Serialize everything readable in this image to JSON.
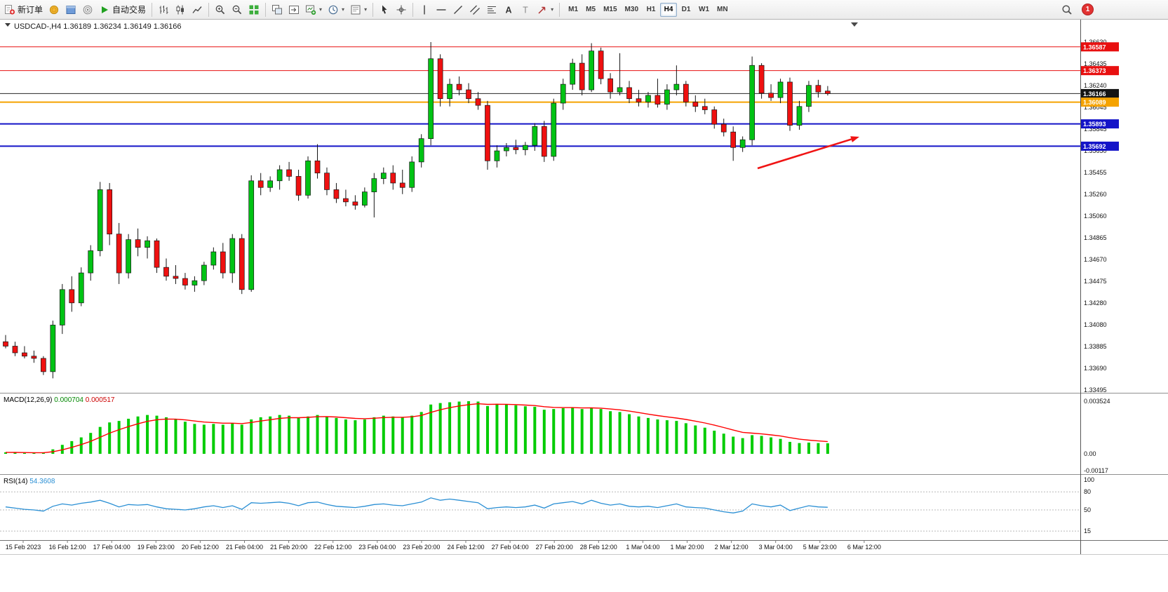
{
  "toolbar": {
    "items": [
      {
        "kind": "labeled",
        "name": "new-order-button",
        "icon": "new-order-icon",
        "label": "新订单"
      },
      {
        "kind": "icon",
        "name": "market-watch-button",
        "icon": "market-watch-icon"
      },
      {
        "kind": "icon",
        "name": "navigator-button",
        "icon": "navigator-icon"
      },
      {
        "kind": "icon",
        "name": "terminal-button",
        "icon": "terminal-icon"
      },
      {
        "kind": "labeled",
        "name": "autotrading-button",
        "icon": "autotrading-icon",
        "label": "自动交易"
      },
      {
        "kind": "sep"
      },
      {
        "kind": "icon",
        "name": "bar-chart-button",
        "icon": "bar-chart-icon"
      },
      {
        "kind": "icon",
        "name": "candlestick-chart-button",
        "icon": "candlestick-icon"
      },
      {
        "kind": "icon",
        "name": "line-chart-button",
        "icon": "line-chart-icon"
      },
      {
        "kind": "sep"
      },
      {
        "kind": "icon",
        "name": "zoom-in-button",
        "icon": "zoom-in-icon"
      },
      {
        "kind": "icon",
        "name": "zoom-out-button",
        "icon": "zoom-out-icon"
      },
      {
        "kind": "icon",
        "name": "tile-windows-button",
        "icon": "tile-windows-icon"
      },
      {
        "kind": "sep"
      },
      {
        "kind": "icon",
        "name": "auto-arrange-button",
        "icon": "auto-arrange-icon"
      },
      {
        "kind": "icon",
        "name": "chart-shift-button",
        "icon": "chart-shift-icon"
      },
      {
        "kind": "icon-dd",
        "name": "new-chart-button",
        "icon": "new-chart-icon"
      },
      {
        "kind": "icon-dd",
        "name": "periods-button",
        "icon": "clock-icon"
      },
      {
        "kind": "icon-dd",
        "name": "templates-button",
        "icon": "template-icon"
      },
      {
        "kind": "sep"
      },
      {
        "kind": "icon",
        "name": "cursor-button",
        "icon": "cursor-icon"
      },
      {
        "kind": "icon",
        "name": "crosshair-button",
        "icon": "crosshair-icon"
      },
      {
        "kind": "sep"
      },
      {
        "kind": "icon",
        "name": "vertical-line-button",
        "icon": "vertical-line-icon"
      },
      {
        "kind": "icon",
        "name": "horizontal-line-button",
        "icon": "horizontal-line-icon"
      },
      {
        "kind": "icon",
        "name": "trendline-button",
        "icon": "trendline-icon"
      },
      {
        "kind": "icon",
        "name": "channel-button",
        "icon": "channel-icon"
      },
      {
        "kind": "icon",
        "name": "fibonacci-button",
        "icon": "fibonacci-icon"
      },
      {
        "kind": "icon",
        "name": "text-button",
        "icon": "text-icon"
      },
      {
        "kind": "icon",
        "name": "label-button",
        "icon": "label-icon"
      },
      {
        "kind": "icon-dd",
        "name": "arrows-button",
        "icon": "arrow-shape-icon"
      },
      {
        "kind": "sep"
      },
      {
        "kind": "tf-group"
      }
    ],
    "timeframes": [
      "M1",
      "M5",
      "M15",
      "M30",
      "H1",
      "H4",
      "D1",
      "W1",
      "MN"
    ],
    "active_timeframe": "H4",
    "notification_count": "1"
  },
  "chart_header": {
    "title_line": "USDCAD-,H4  1.36189 1.36234 1.36149 1.36166"
  },
  "price_axis": {
    "labels": [
      "1.36630",
      "1.36435",
      "1.36240",
      "1.36045",
      "1.35845",
      "1.35650",
      "1.35455",
      "1.35260",
      "1.35060",
      "1.34865",
      "1.34670",
      "1.34475",
      "1.34280",
      "1.34080",
      "1.33885",
      "1.33690",
      "1.33495"
    ],
    "badges": [
      {
        "text": "1.36587",
        "price": 1.36587,
        "color": "#e81010"
      },
      {
        "text": "1.36373",
        "price": 1.36373,
        "color": "#e81010"
      },
      {
        "text": "1.36166",
        "price": 1.36166,
        "color": "#141414"
      },
      {
        "text": "1.36089",
        "price": 1.36089,
        "color": "#f5a300"
      },
      {
        "text": "1.35893",
        "price": 1.35893,
        "color": "#1414c8"
      },
      {
        "text": "1.35692",
        "price": 1.35692,
        "color": "#1414c8"
      }
    ]
  },
  "time_axis": {
    "labels": [
      "15 Feb 2023",
      "16 Feb 12:00",
      "17 Feb 04:00",
      "19 Feb 23:00",
      "20 Feb 12:00",
      "21 Feb 04:00",
      "21 Feb 20:00",
      "22 Feb 12:00",
      "23 Feb 04:00",
      "23 Feb 20:00",
      "24 Feb 12:00",
      "27 Feb 04:00",
      "27 Feb 20:00",
      "28 Feb 12:00",
      "1 Mar 04:00",
      "1 Mar 20:00",
      "2 Mar 12:00",
      "3 Mar 04:00",
      "5 Mar 23:00",
      "6 Mar 12:00"
    ]
  },
  "chart_data": {
    "type": "candlestick",
    "symbol": "USDCAD-",
    "timeframe": "H4",
    "current_bar": {
      "open": 1.36189,
      "high": 1.36234,
      "low": 1.36149,
      "close": 1.36166
    },
    "price_axis_range": [
      1.33495,
      1.3663
    ],
    "up_color": "#00c314",
    "down_color": "#ef1010",
    "candles": [
      [
        1.3393,
        1.3399,
        1.3387,
        1.3389
      ],
      [
        1.3389,
        1.3393,
        1.338,
        1.3383
      ],
      [
        1.3383,
        1.3389,
        1.3378,
        1.338
      ],
      [
        1.338,
        1.3385,
        1.3374,
        1.3378
      ],
      [
        1.3378,
        1.338,
        1.3363,
        1.3366
      ],
      [
        1.3366,
        1.3412,
        1.336,
        1.3408
      ],
      [
        1.3408,
        1.3445,
        1.34,
        1.344
      ],
      [
        1.344,
        1.3452,
        1.342,
        1.3428
      ],
      [
        1.3428,
        1.346,
        1.3425,
        1.3455
      ],
      [
        1.3455,
        1.348,
        1.3448,
        1.3475
      ],
      [
        1.3475,
        1.3537,
        1.347,
        1.353
      ],
      [
        1.353,
        1.3536,
        1.348,
        1.349
      ],
      [
        1.349,
        1.35,
        1.3445,
        1.3455
      ],
      [
        1.3455,
        1.349,
        1.345,
        1.3485
      ],
      [
        1.3485,
        1.3495,
        1.347,
        1.3478
      ],
      [
        1.3478,
        1.3488,
        1.3468,
        1.3484
      ],
      [
        1.3484,
        1.3486,
        1.3455,
        1.346
      ],
      [
        1.346,
        1.3468,
        1.3448,
        1.3452
      ],
      [
        1.3452,
        1.3462,
        1.3445,
        1.345
      ],
      [
        1.345,
        1.3455,
        1.344,
        1.3444
      ],
      [
        1.3444,
        1.3452,
        1.3438,
        1.3448
      ],
      [
        1.3448,
        1.3465,
        1.3444,
        1.3462
      ],
      [
        1.3462,
        1.3478,
        1.3458,
        1.3474
      ],
      [
        1.3474,
        1.3482,
        1.345,
        1.3455
      ],
      [
        1.3455,
        1.349,
        1.3446,
        1.3486
      ],
      [
        1.3486,
        1.349,
        1.3436,
        1.344
      ],
      [
        1.344,
        1.3543,
        1.3438,
        1.3538
      ],
      [
        1.3538,
        1.3545,
        1.3525,
        1.3532
      ],
      [
        1.3532,
        1.3542,
        1.3528,
        1.3538
      ],
      [
        1.3538,
        1.3552,
        1.353,
        1.3548
      ],
      [
        1.3548,
        1.3555,
        1.3538,
        1.3542
      ],
      [
        1.3542,
        1.3548,
        1.352,
        1.3525
      ],
      [
        1.3525,
        1.356,
        1.3522,
        1.3556
      ],
      [
        1.3556,
        1.3571,
        1.354,
        1.3545
      ],
      [
        1.3545,
        1.355,
        1.3525,
        1.353
      ],
      [
        1.353,
        1.3536,
        1.3518,
        1.3522
      ],
      [
        1.3522,
        1.353,
        1.3515,
        1.3519
      ],
      [
        1.3519,
        1.3525,
        1.3512,
        1.3516
      ],
      [
        1.3516,
        1.3532,
        1.3514,
        1.3528
      ],
      [
        1.3528,
        1.3545,
        1.3505,
        1.354
      ],
      [
        1.354,
        1.355,
        1.3535,
        1.3545
      ],
      [
        1.3545,
        1.3552,
        1.353,
        1.3536
      ],
      [
        1.3536,
        1.3548,
        1.3526,
        1.3532
      ],
      [
        1.3532,
        1.356,
        1.3528,
        1.3555
      ],
      [
        1.3555,
        1.358,
        1.355,
        1.3576
      ],
      [
        1.3576,
        1.3663,
        1.357,
        1.3648
      ],
      [
        1.3648,
        1.3652,
        1.3605,
        1.3612
      ],
      [
        1.3612,
        1.363,
        1.3605,
        1.3625
      ],
      [
        1.3625,
        1.3632,
        1.3615,
        1.362
      ],
      [
        1.362,
        1.3626,
        1.3608,
        1.3612
      ],
      [
        1.3612,
        1.3618,
        1.3602,
        1.3606
      ],
      [
        1.3606,
        1.361,
        1.3548,
        1.3556
      ],
      [
        1.3556,
        1.357,
        1.355,
        1.3565
      ],
      [
        1.3565,
        1.3572,
        1.356,
        1.3568
      ],
      [
        1.3568,
        1.3575,
        1.3562,
        1.3566
      ],
      [
        1.3566,
        1.3573,
        1.3561,
        1.357
      ],
      [
        1.357,
        1.359,
        1.3565,
        1.3587
      ],
      [
        1.3587,
        1.3592,
        1.3555,
        1.356
      ],
      [
        1.356,
        1.3612,
        1.3556,
        1.3608
      ],
      [
        1.3608,
        1.363,
        1.3602,
        1.3625
      ],
      [
        1.3625,
        1.3648,
        1.362,
        1.3644
      ],
      [
        1.3644,
        1.3652,
        1.3615,
        1.362
      ],
      [
        1.362,
        1.3662,
        1.3618,
        1.3655
      ],
      [
        1.3655,
        1.3658,
        1.3625,
        1.363
      ],
      [
        1.363,
        1.3635,
        1.3612,
        1.3618
      ],
      [
        1.3618,
        1.3653,
        1.3615,
        1.3622
      ],
      [
        1.3622,
        1.3628,
        1.3608,
        1.3612
      ],
      [
        1.3612,
        1.362,
        1.3605,
        1.3609
      ],
      [
        1.3609,
        1.3618,
        1.3604,
        1.3615
      ],
      [
        1.3615,
        1.363,
        1.3604,
        1.3607
      ],
      [
        1.3607,
        1.3625,
        1.3602,
        1.362
      ],
      [
        1.362,
        1.3642,
        1.3615,
        1.3625
      ],
      [
        1.3625,
        1.3628,
        1.3605,
        1.3609
      ],
      [
        1.3609,
        1.3615,
        1.36,
        1.3605
      ],
      [
        1.3605,
        1.3612,
        1.3598,
        1.3602
      ],
      [
        1.3602,
        1.3605,
        1.3585,
        1.3589
      ],
      [
        1.3589,
        1.3594,
        1.3578,
        1.3582
      ],
      [
        1.3582,
        1.3587,
        1.3556,
        1.3568
      ],
      [
        1.3568,
        1.3578,
        1.3564,
        1.3575
      ],
      [
        1.3575,
        1.365,
        1.357,
        1.3642
      ],
      [
        1.3642,
        1.3644,
        1.3612,
        1.3617
      ],
      [
        1.3617,
        1.3625,
        1.361,
        1.3613
      ],
      [
        1.3613,
        1.363,
        1.3608,
        1.3627
      ],
      [
        1.3627,
        1.3631,
        1.3583,
        1.3588
      ],
      [
        1.3588,
        1.361,
        1.3584,
        1.3605
      ],
      [
        1.3605,
        1.3628,
        1.36,
        1.3624
      ],
      [
        1.3624,
        1.3629,
        1.3613,
        1.3618
      ],
      [
        1.36189,
        1.36234,
        1.36149,
        1.36166
      ]
    ],
    "horizontal_lines": [
      {
        "price": 1.36587,
        "color": "#e81010",
        "width": 1,
        "name": "resistance-line-1"
      },
      {
        "price": 1.36373,
        "color": "#e81010",
        "width": 1,
        "name": "resistance-line-2"
      },
      {
        "price": 1.36166,
        "color": "#262626",
        "width": 1,
        "name": "current-price-line"
      },
      {
        "price": 1.36089,
        "color": "#f5a300",
        "width": 2,
        "name": "pivot-line"
      },
      {
        "price": 1.35893,
        "color": "#1414c8",
        "width": 2,
        "name": "support-line-1"
      },
      {
        "price": 1.35692,
        "color": "#1414c8",
        "width": 2,
        "name": "support-line-2"
      }
    ],
    "indicators": [
      {
        "name": "MACD",
        "params": "(12,26,9)",
        "value_main": "0.000704",
        "value_signal": "0.000517",
        "axis_labels": [
          "0.003524",
          "0.00",
          "-0.00117"
        ],
        "histogram_color": "#00cc00",
        "signal_color": "#ff0000",
        "histogram": [
          0.0001,
          8e-05,
          6e-05,
          5e-05,
          8e-05,
          0.0003,
          0.0006,
          0.00085,
          0.0011,
          0.0014,
          0.0018,
          0.0021,
          0.0022,
          0.00235,
          0.0025,
          0.0026,
          0.00255,
          0.00245,
          0.0023,
          0.00215,
          0.002,
          0.00195,
          0.002,
          0.00195,
          0.00205,
          0.00195,
          0.0023,
          0.00245,
          0.0025,
          0.0026,
          0.00255,
          0.0024,
          0.0025,
          0.0026,
          0.0025,
          0.0024,
          0.0023,
          0.00225,
          0.0023,
          0.00245,
          0.00255,
          0.0025,
          0.00245,
          0.00255,
          0.0028,
          0.0033,
          0.0034,
          0.00345,
          0.0035,
          0.00352,
          0.0035,
          0.0032,
          0.00335,
          0.0033,
          0.00325,
          0.00318,
          0.00315,
          0.00295,
          0.003,
          0.00305,
          0.0031,
          0.003,
          0.0031,
          0.003,
          0.00285,
          0.0028,
          0.00265,
          0.0025,
          0.0024,
          0.0023,
          0.00225,
          0.0022,
          0.00205,
          0.0019,
          0.00175,
          0.00155,
          0.00135,
          0.00115,
          0.00105,
          0.00125,
          0.0012,
          0.0011,
          0.001,
          0.0008,
          0.00072,
          0.00075,
          0.00072,
          0.000704
        ]
      },
      {
        "name": "RSI",
        "params": "(14)",
        "value": "54.3608",
        "axis_labels": [
          "100",
          "80",
          "50",
          "15"
        ],
        "levels": [
          80,
          50,
          15
        ],
        "line_color": "#2a8fd4",
        "values": [
          55,
          53,
          51,
          50,
          48,
          56,
          60,
          58,
          61,
          63,
          66,
          61,
          55,
          59,
          58,
          59,
          55,
          52,
          51,
          50,
          52,
          55,
          57,
          54,
          57,
          51,
          62,
          61,
          62,
          63,
          61,
          57,
          62,
          63,
          59,
          56,
          55,
          54,
          56,
          59,
          60,
          58,
          57,
          60,
          63,
          70,
          66,
          68,
          66,
          64,
          62,
          52,
          54,
          55,
          54,
          55,
          58,
          53,
          60,
          62,
          64,
          60,
          66,
          61,
          58,
          60,
          56,
          55,
          56,
          54,
          57,
          60,
          55,
          54,
          53,
          50,
          47,
          45,
          48,
          60,
          57,
          55,
          58,
          49,
          53,
          57,
          55,
          54.3608
        ]
      }
    ],
    "annotation_arrow": {
      "from": [
        1080,
        212
      ],
      "to": [
        1225,
        167
      ],
      "color": "#f01414"
    }
  }
}
